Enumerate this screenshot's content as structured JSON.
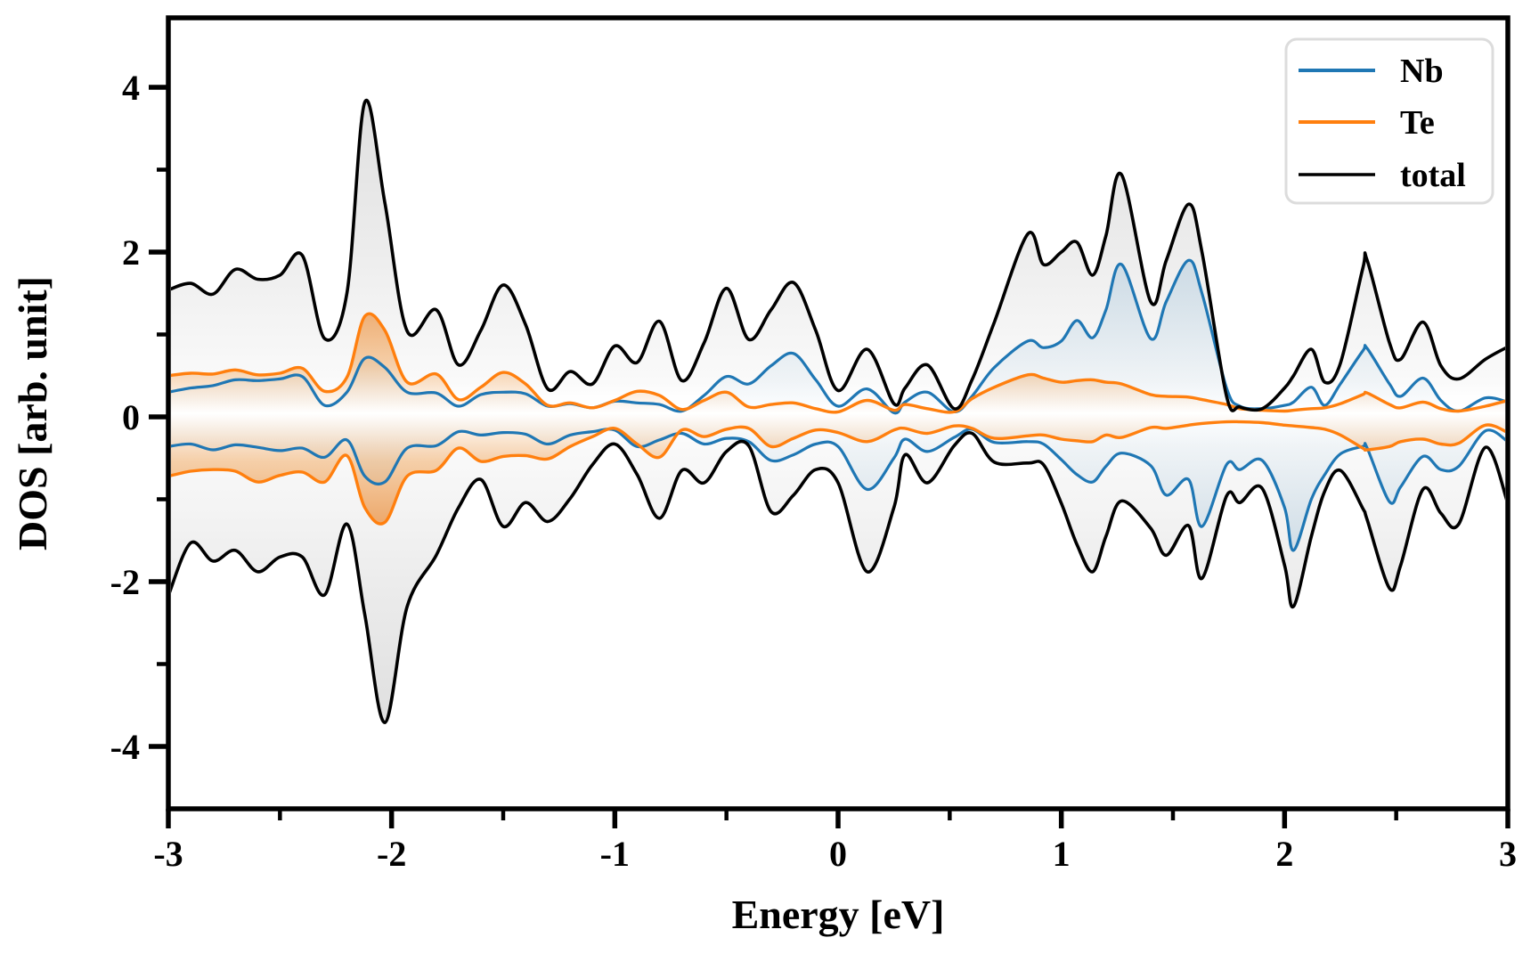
{
  "chart_data": {
    "type": "area",
    "title": "",
    "xlabel": "Energy [eV]",
    "ylabel": "DOS [arb. unit]",
    "xlim": [
      -3,
      3
    ],
    "ylim": [
      -4.76,
      4.84
    ],
    "grid": false,
    "legend_position": "upper right",
    "x_ticks": [
      -3,
      -2,
      -1,
      0,
      1,
      2,
      3
    ],
    "x_minor_ticks": [
      -2.5,
      -1.5,
      -0.5,
      0.5,
      1.5,
      2.5
    ],
    "y_ticks": [
      -4,
      -2,
      0,
      2,
      4
    ],
    "y_minor_ticks": [
      -3,
      -1,
      1,
      3
    ],
    "legend": [
      {
        "label": "Nb",
        "color": "#1f77b4"
      },
      {
        "label": "Te",
        "color": "#ff7f0e"
      },
      {
        "label": "total",
        "color": "#000000"
      }
    ],
    "description": "Spin-resolved density of states: positive values spin-up, negative values spin-down",
    "series": {
      "x": [
        -3.0,
        -2.9,
        -2.8,
        -2.7,
        -2.6,
        -2.5,
        -2.4,
        -2.3,
        -2.2,
        -2.12,
        -2.03,
        -1.93,
        -1.8,
        -1.7,
        -1.6,
        -1.5,
        -1.4,
        -1.3,
        -1.2,
        -1.1,
        -1.0,
        -0.9,
        -0.8,
        -0.7,
        -0.6,
        -0.5,
        -0.4,
        -0.3,
        -0.2,
        -0.1,
        0.0,
        0.13,
        0.25,
        0.3,
        0.4,
        0.52,
        0.6,
        0.7,
        0.85,
        0.92,
        1.0,
        1.07,
        1.14,
        1.2,
        1.27,
        1.4,
        1.47,
        1.57,
        1.63,
        1.74,
        1.8,
        1.9,
        2.0,
        2.04,
        2.12,
        2.18,
        2.25,
        2.35,
        2.37,
        2.47,
        2.52,
        2.62,
        2.7,
        2.78,
        2.9,
        3.0
      ],
      "total_up": [
        1.54,
        1.62,
        1.49,
        1.79,
        1.67,
        1.72,
        1.96,
        0.95,
        1.5,
        3.82,
        2.6,
        1.04,
        1.3,
        0.63,
        1.05,
        1.6,
        1.12,
        0.34,
        0.55,
        0.4,
        0.86,
        0.66,
        1.16,
        0.44,
        0.9,
        1.56,
        0.94,
        1.3,
        1.63,
        1.05,
        0.32,
        0.82,
        0.16,
        0.35,
        0.63,
        0.1,
        0.45,
        1.15,
        2.22,
        1.85,
        2.0,
        2.12,
        1.72,
        2.2,
        2.94,
        1.4,
        1.9,
        2.58,
        2.0,
        0.25,
        0.12,
        0.1,
        0.35,
        0.5,
        0.82,
        0.42,
        0.65,
        1.8,
        1.9,
        0.9,
        0.7,
        1.15,
        0.62,
        0.46,
        0.7,
        0.85
      ],
      "total_down": [
        -2.17,
        -1.53,
        -1.75,
        -1.62,
        -1.88,
        -1.7,
        -1.7,
        -2.16,
        -1.3,
        -2.4,
        -3.71,
        -2.3,
        -1.68,
        -1.1,
        -0.76,
        -1.33,
        -1.04,
        -1.27,
        -0.99,
        -0.58,
        -0.33,
        -0.7,
        -1.23,
        -0.65,
        -0.8,
        -0.42,
        -0.35,
        -1.15,
        -0.95,
        -0.64,
        -0.8,
        -1.88,
        -1.1,
        -0.46,
        -0.8,
        -0.35,
        -0.2,
        -0.55,
        -0.56,
        -0.58,
        -1.05,
        -1.55,
        -1.88,
        -1.45,
        -1.02,
        -1.35,
        -1.68,
        -1.32,
        -1.96,
        -0.96,
        -1.04,
        -0.87,
        -1.8,
        -2.3,
        -1.45,
        -0.9,
        -0.65,
        -1.11,
        -1.25,
        -2.08,
        -1.8,
        -0.88,
        -1.17,
        -1.3,
        -0.37,
        -1.05
      ],
      "nb_up": [
        0.3,
        0.35,
        0.38,
        0.45,
        0.44,
        0.46,
        0.49,
        0.14,
        0.3,
        0.71,
        0.6,
        0.3,
        0.29,
        0.13,
        0.27,
        0.3,
        0.28,
        0.13,
        0.16,
        0.11,
        0.19,
        0.17,
        0.15,
        0.07,
        0.26,
        0.49,
        0.4,
        0.62,
        0.77,
        0.45,
        0.13,
        0.34,
        0.05,
        0.18,
        0.3,
        0.06,
        0.25,
        0.6,
        0.92,
        0.84,
        0.92,
        1.17,
        0.96,
        1.3,
        1.85,
        0.95,
        1.4,
        1.9,
        1.5,
        0.35,
        0.13,
        0.1,
        0.14,
        0.18,
        0.36,
        0.14,
        0.4,
        0.8,
        0.83,
        0.4,
        0.25,
        0.47,
        0.2,
        0.07,
        0.23,
        0.18
      ],
      "nb_down": [
        -0.36,
        -0.33,
        -0.4,
        -0.34,
        -0.37,
        -0.41,
        -0.38,
        -0.49,
        -0.28,
        -0.72,
        -0.79,
        -0.38,
        -0.35,
        -0.18,
        -0.22,
        -0.19,
        -0.21,
        -0.33,
        -0.22,
        -0.18,
        -0.16,
        -0.36,
        -0.28,
        -0.2,
        -0.33,
        -0.26,
        -0.3,
        -0.53,
        -0.46,
        -0.33,
        -0.36,
        -0.88,
        -0.5,
        -0.27,
        -0.42,
        -0.25,
        -0.15,
        -0.31,
        -0.3,
        -0.33,
        -0.52,
        -0.7,
        -0.79,
        -0.6,
        -0.44,
        -0.59,
        -0.95,
        -0.76,
        -1.33,
        -0.58,
        -0.64,
        -0.53,
        -1.1,
        -1.62,
        -1.0,
        -0.7,
        -0.45,
        -0.36,
        -0.38,
        -1.03,
        -0.85,
        -0.48,
        -0.64,
        -0.6,
        -0.17,
        -0.3
      ],
      "te_up": [
        0.5,
        0.53,
        0.52,
        0.57,
        0.51,
        0.53,
        0.59,
        0.31,
        0.48,
        1.22,
        1.05,
        0.42,
        0.52,
        0.21,
        0.36,
        0.54,
        0.4,
        0.14,
        0.17,
        0.11,
        0.2,
        0.31,
        0.26,
        0.09,
        0.2,
        0.3,
        0.12,
        0.15,
        0.17,
        0.1,
        0.06,
        0.2,
        0.08,
        0.15,
        0.1,
        0.06,
        0.22,
        0.36,
        0.51,
        0.47,
        0.42,
        0.44,
        0.45,
        0.42,
        0.4,
        0.27,
        0.25,
        0.24,
        0.21,
        0.15,
        0.1,
        0.08,
        0.07,
        0.08,
        0.1,
        0.11,
        0.16,
        0.27,
        0.29,
        0.15,
        0.11,
        0.18,
        0.1,
        0.07,
        0.13,
        0.2
      ],
      "te_down": [
        -0.72,
        -0.66,
        -0.64,
        -0.66,
        -0.79,
        -0.71,
        -0.67,
        -0.79,
        -0.47,
        -1.1,
        -1.28,
        -0.72,
        -0.65,
        -0.38,
        -0.54,
        -0.48,
        -0.47,
        -0.51,
        -0.36,
        -0.24,
        -0.14,
        -0.33,
        -0.49,
        -0.16,
        -0.24,
        -0.15,
        -0.14,
        -0.36,
        -0.26,
        -0.16,
        -0.19,
        -0.3,
        -0.16,
        -0.14,
        -0.2,
        -0.11,
        -0.14,
        -0.26,
        -0.23,
        -0.22,
        -0.27,
        -0.29,
        -0.3,
        -0.22,
        -0.25,
        -0.13,
        -0.14,
        -0.1,
        -0.08,
        -0.06,
        -0.06,
        -0.07,
        -0.1,
        -0.11,
        -0.13,
        -0.15,
        -0.22,
        -0.38,
        -0.4,
        -0.36,
        -0.3,
        -0.27,
        -0.33,
        -0.32,
        -0.1,
        -0.19
      ]
    },
    "colors": {
      "nb_line": "#1f77b4",
      "te_line": "#ff7f0e",
      "total_line": "#000000",
      "background": "#ffffff",
      "legend_border": "#dcdcdc"
    }
  }
}
